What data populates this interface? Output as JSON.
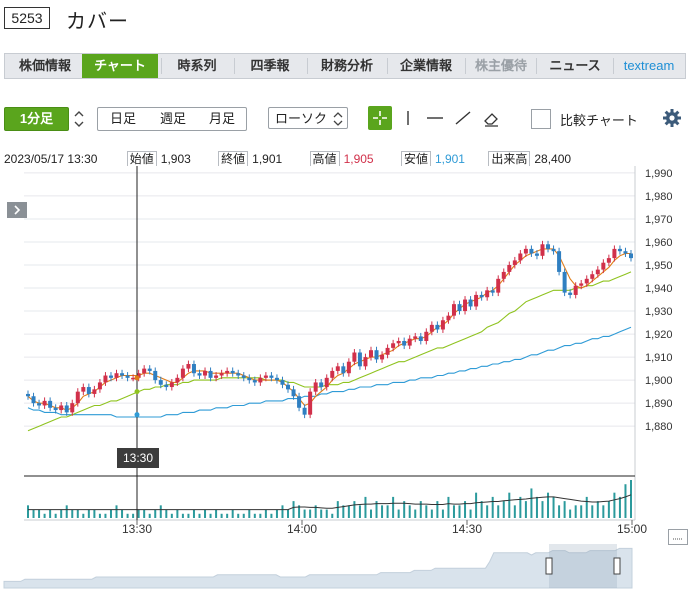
{
  "header": {
    "code": "5253",
    "company": "カバー"
  },
  "tabs": [
    {
      "label": "株価情報",
      "state": "normal"
    },
    {
      "label": "チャート",
      "state": "active"
    },
    {
      "label": "時系列",
      "state": "normal"
    },
    {
      "label": "四季報",
      "state": "normal"
    },
    {
      "label": "財務分析",
      "state": "normal"
    },
    {
      "label": "企業情報",
      "state": "normal"
    },
    {
      "label": "株主優待",
      "state": "disabled"
    },
    {
      "label": "ニュース",
      "state": "normal"
    },
    {
      "label": "textream",
      "state": "link"
    }
  ],
  "toolbar": {
    "interval": "1分足",
    "day": "日足",
    "week": "週足",
    "month": "月足",
    "chart_type": "ローソク",
    "compare": "比較チャート"
  },
  "info": {
    "datetime": "2023/05/17 13:30",
    "open_label": "始値",
    "open": "1,903",
    "close_label": "終値",
    "close": "1,901",
    "high_label": "高値",
    "high": "1,905",
    "low_label": "安値",
    "low": "1,901",
    "volume_label": "出来高",
    "volume": "28,400"
  },
  "cursor_label": "13:30",
  "colors": {
    "up": "#d1304a",
    "down": "#2f7fc1",
    "ma_short": "#e07b16",
    "ma_mid": "#8fc31f",
    "ma_long": "#2f9bd6",
    "accent": "#5aa51d"
  },
  "chart_data": {
    "type": "candlestick",
    "ylim": [
      1874,
      1993
    ],
    "yticks": [
      "1,990",
      "1,980",
      "1,970",
      "1,960",
      "1,950",
      "1,940",
      "1,930",
      "1,920",
      "1,910",
      "1,900",
      "1,890",
      "1,880"
    ],
    "xticks": [
      "13:30",
      "14:00",
      "14:30",
      "15:00"
    ],
    "cursor_time": "13:30",
    "price": [
      1893,
      1890,
      1889,
      1891,
      1888,
      1887,
      1889,
      1886,
      1890,
      1895,
      1897,
      1894,
      1896,
      1899,
      1902,
      1901,
      1903,
      1902,
      1901,
      1901,
      1903,
      1905,
      1904,
      1900,
      1898,
      1897,
      1899,
      1901,
      1905,
      1907,
      1903,
      1902,
      1904,
      1901,
      1902,
      1903,
      1904,
      1903,
      1902,
      1901,
      1900,
      1899,
      1901,
      1902,
      1901,
      1900,
      1898,
      1896,
      1893,
      1888,
      1885,
      1895,
      1899,
      1897,
      1901,
      1904,
      1906,
      1903,
      1908,
      1912,
      1906,
      1910,
      1913,
      1909,
      1911,
      1914,
      1916,
      1917,
      1915,
      1918,
      1919,
      1917,
      1921,
      1924,
      1922,
      1926,
      1928,
      1933,
      1930,
      1935,
      1932,
      1937,
      1936,
      1939,
      1938,
      1944,
      1947,
      1950,
      1952,
      1955,
      1957,
      1955,
      1954,
      1959,
      1957,
      1956,
      1947,
      1938,
      1937,
      1941,
      1942,
      1944,
      1946,
      1948,
      1951,
      1953,
      1957,
      1956,
      1955,
      1953
    ],
    "ma_short": [
      1893,
      1891,
      1890,
      1890,
      1889,
      1888,
      1888,
      1887,
      1888,
      1890,
      1893,
      1894,
      1895,
      1897,
      1899,
      1900,
      1901,
      1902,
      1902,
      1902,
      1902,
      1903,
      1903,
      1902,
      1901,
      1900,
      1899,
      1899,
      1901,
      1903,
      1904,
      1904,
      1904,
      1903,
      1903,
      1903,
      1903,
      1903,
      1903,
      1902,
      1901,
      1900,
      1900,
      1900,
      1900,
      1900,
      1899,
      1897,
      1895,
      1892,
      1889,
      1890,
      1893,
      1895,
      1897,
      1900,
      1902,
      1903,
      1905,
      1907,
      1908,
      1909,
      1910,
      1910,
      1911,
      1912,
      1913,
      1915,
      1916,
      1917,
      1918,
      1918,
      1919,
      1921,
      1923,
      1924,
      1926,
      1929,
      1931,
      1933,
      1934,
      1935,
      1936,
      1938,
      1939,
      1941,
      1944,
      1947,
      1950,
      1952,
      1954,
      1955,
      1956,
      1957,
      1957,
      1957,
      1954,
      1949,
      1944,
      1941,
      1940,
      1941,
      1943,
      1945,
      1947,
      1949,
      1952,
      1954,
      1955,
      1955
    ],
    "ma_mid": [
      1878,
      1879,
      1880,
      1881,
      1882,
      1883,
      1884,
      1884,
      1885,
      1886,
      1887,
      1888,
      1889,
      1889,
      1890,
      1891,
      1891,
      1892,
      1893,
      1894,
      1895,
      1896,
      1896,
      1897,
      1897,
      1898,
      1898,
      1898,
      1899,
      1899,
      1900,
      1900,
      1900,
      1900,
      1900,
      1901,
      1901,
      1901,
      1901,
      1901,
      1901,
      1901,
      1901,
      1900,
      1900,
      1900,
      1900,
      1899,
      1899,
      1898,
      1897,
      1897,
      1897,
      1897,
      1898,
      1898,
      1898,
      1899,
      1899,
      1900,
      1901,
      1902,
      1903,
      1904,
      1905,
      1906,
      1907,
      1908,
      1908,
      1909,
      1910,
      1911,
      1912,
      1913,
      1914,
      1914,
      1915,
      1916,
      1917,
      1918,
      1919,
      1920,
      1921,
      1923,
      1924,
      1925,
      1927,
      1929,
      1930,
      1932,
      1934,
      1935,
      1936,
      1937,
      1938,
      1939,
      1939,
      1939,
      1939,
      1940,
      1940,
      1941,
      1941,
      1942,
      1943,
      1943,
      1944,
      1945,
      1946,
      1947
    ],
    "ma_long": [
      1888,
      1887,
      1887,
      1886,
      1886,
      1886,
      1885,
      1885,
      1885,
      1885,
      1885,
      1885,
      1885,
      1885,
      1885,
      1885,
      1884,
      1884,
      1884,
      1884,
      1884,
      1884,
      1884,
      1884,
      1884,
      1885,
      1885,
      1885,
      1886,
      1886,
      1886,
      1887,
      1887,
      1887,
      1888,
      1888,
      1888,
      1889,
      1889,
      1889,
      1890,
      1890,
      1890,
      1891,
      1891,
      1891,
      1891,
      1892,
      1892,
      1892,
      1893,
      1893,
      1893,
      1894,
      1894,
      1895,
      1895,
      1895,
      1896,
      1896,
      1897,
      1897,
      1897,
      1898,
      1898,
      1898,
      1899,
      1899,
      1899,
      1900,
      1900,
      1901,
      1901,
      1901,
      1902,
      1902,
      1903,
      1903,
      1904,
      1904,
      1905,
      1905,
      1906,
      1906,
      1907,
      1907,
      1908,
      1908,
      1909,
      1909,
      1910,
      1911,
      1911,
      1912,
      1913,
      1913,
      1914,
      1915,
      1915,
      1916,
      1916,
      1917,
      1918,
      1918,
      1919,
      1919,
      1920,
      1921,
      1922,
      1923
    ],
    "volume": [
      3,
      2,
      2,
      1,
      2,
      1,
      2,
      3,
      2,
      2,
      1,
      2,
      2,
      1,
      1,
      2,
      3,
      2,
      1,
      1,
      2,
      2,
      1,
      2,
      3,
      2,
      1,
      2,
      1,
      1,
      2,
      1,
      2,
      1,
      2,
      1,
      1,
      2,
      1,
      1,
      2,
      1,
      1,
      2,
      1,
      2,
      3,
      2,
      4,
      3,
      2,
      2,
      3,
      2,
      2,
      1,
      4,
      3,
      3,
      4,
      3,
      5,
      2,
      4,
      3,
      3,
      5,
      2,
      4,
      3,
      2,
      4,
      3,
      2,
      4,
      2,
      5,
      3,
      3,
      4,
      2,
      6,
      4,
      3,
      5,
      3,
      4,
      6,
      3,
      5,
      4,
      7,
      5,
      4,
      6,
      5,
      3,
      4,
      2,
      3,
      3,
      5,
      3,
      4,
      3,
      4,
      6,
      5,
      8,
      9
    ],
    "volume_avg": [
      2,
      2,
      2,
      2,
      2,
      2,
      2,
      2,
      2,
      2,
      2,
      2,
      2,
      2,
      2,
      2,
      2,
      2,
      2,
      2,
      2,
      2,
      2,
      2,
      2,
      2,
      2,
      2,
      2,
      2,
      2,
      2,
      2,
      2,
      2,
      2,
      2,
      2,
      2,
      2,
      2,
      2,
      2,
      2,
      2,
      2,
      2,
      2,
      2.5,
      2.6,
      2.6,
      2.5,
      2.5,
      2.4,
      2.3,
      2.3,
      2.5,
      2.7,
      2.9,
      3.1,
      3.2,
      3.3,
      3.3,
      3.4,
      3.4,
      3.4,
      3.5,
      3.5,
      3.5,
      3.4,
      3.3,
      3.3,
      3.3,
      3.2,
      3.2,
      3.2,
      3.4,
      3.3,
      3.3,
      3.4,
      3.4,
      3.6,
      3.7,
      3.8,
      3.9,
      3.9,
      4.1,
      4.2,
      4.3,
      4.4,
      4.5,
      4.7,
      4.8,
      4.9,
      5.0,
      5.0,
      4.8,
      4.6,
      4.4,
      4.2,
      4.0,
      3.9,
      3.8,
      3.8,
      3.9,
      4.0,
      4.3,
      4.6,
      5.0,
      5.5
    ],
    "overview": [
      3,
      3,
      3,
      3,
      3,
      4,
      4,
      4,
      4,
      4,
      4,
      4,
      4,
      4,
      4,
      4,
      4,
      4,
      4,
      4,
      4,
      4,
      5,
      5,
      5,
      5,
      5,
      5,
      5,
      5,
      5,
      5,
      5,
      5,
      5,
      5,
      5,
      5,
      5,
      5,
      5,
      5,
      5,
      5,
      5,
      5,
      5,
      5,
      5,
      5,
      5,
      6,
      6,
      6,
      6,
      6,
      6,
      6,
      6,
      6,
      6,
      6,
      6,
      6,
      6,
      6,
      5,
      5,
      5,
      5,
      5,
      5,
      5,
      6,
      6,
      6,
      6,
      6,
      6,
      6,
      6,
      6,
      6,
      6,
      6,
      6,
      6,
      6,
      6,
      6,
      7,
      7,
      7,
      7,
      7,
      7,
      7,
      7,
      8,
      8,
      8,
      8,
      8,
      9,
      9,
      9,
      9,
      9,
      9,
      9,
      9,
      9,
      9,
      9,
      9,
      9,
      12,
      16,
      16,
      16,
      16,
      16,
      16,
      16,
      16,
      16,
      15,
      16,
      16,
      16,
      16,
      17,
      17,
      17,
      17,
      16,
      16,
      16,
      16,
      16,
      17,
      17,
      17,
      17,
      17,
      17,
      17,
      18,
      18,
      18,
      18
    ]
  }
}
